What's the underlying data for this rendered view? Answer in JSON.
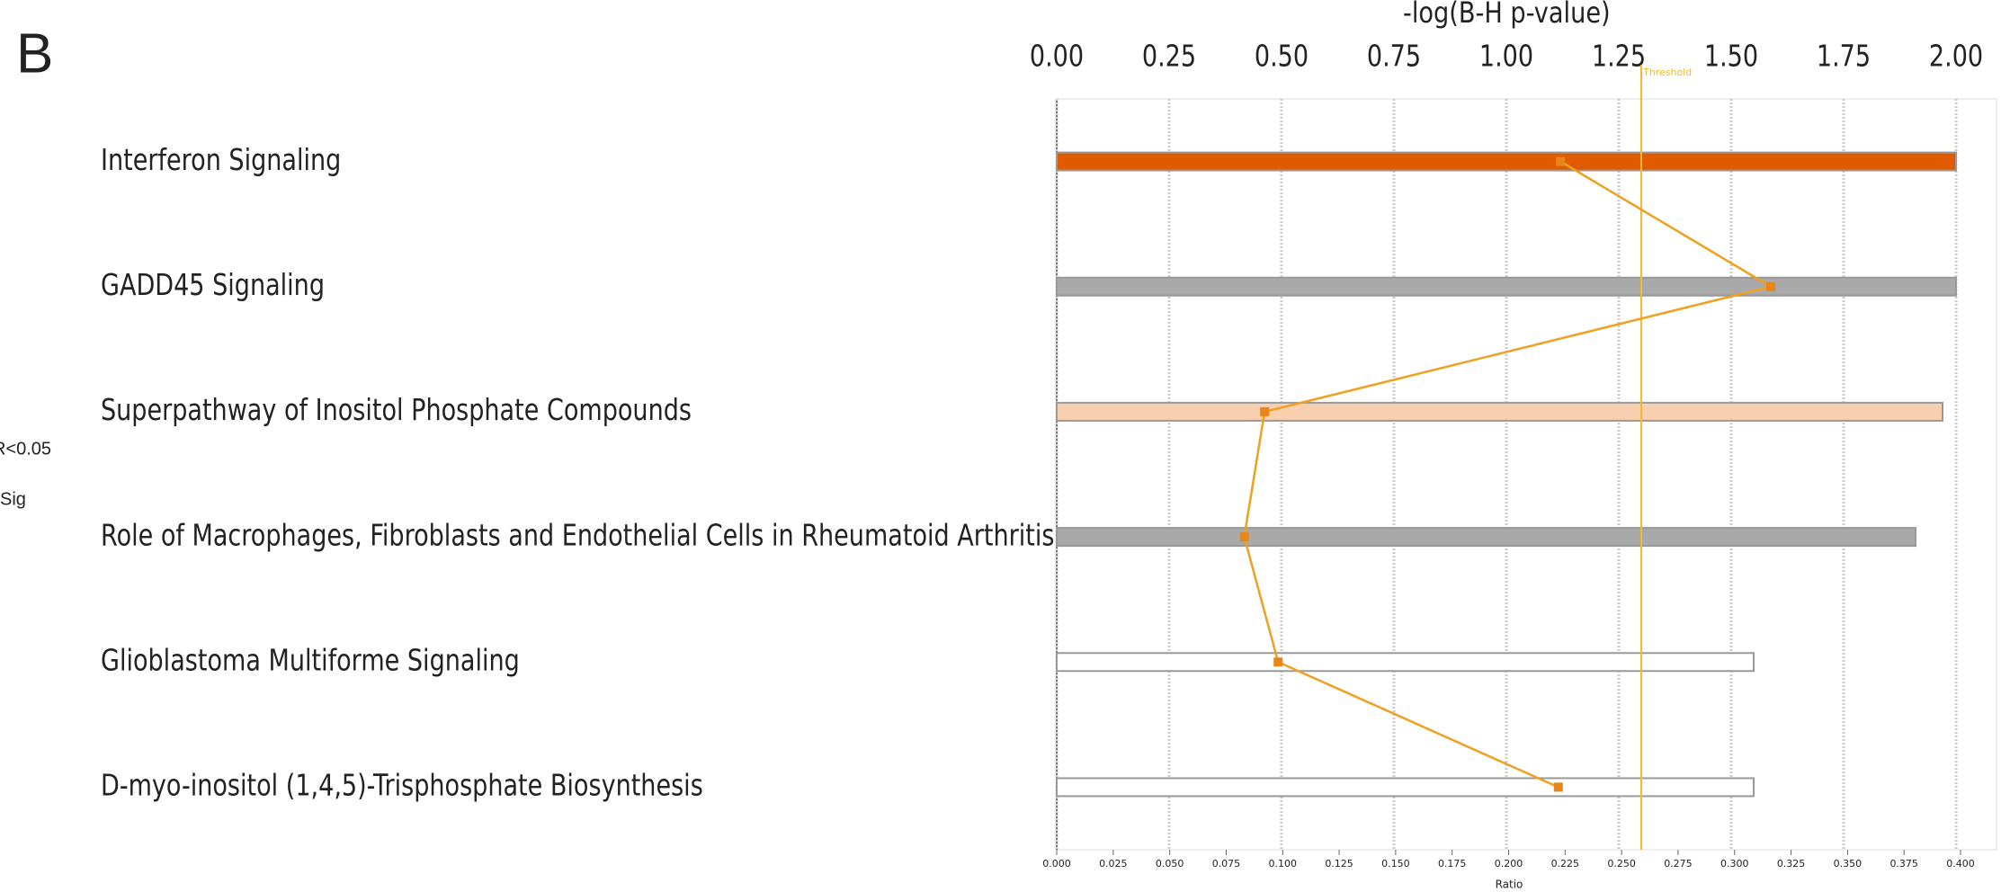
{
  "chart_data": {
    "type": "bar",
    "panel_label": "B",
    "side_labels": [
      "R<0.05",
      "Sig"
    ],
    "xlabel": "-log(B-H p-value)",
    "x2label": "Ratio",
    "categories": [
      "Interferon Signaling",
      "GADD45 Signaling",
      "Superpathway of Inositol Phosphate Compounds",
      "Role of Macrophages, Fibroblasts and Endothelial Cells in Rheumatoid Arthritis",
      "Glioblastoma Multiforme Signaling",
      "D-myo-inositol (1,4,5)-Trisphosphate Biosynthesis"
    ],
    "values": [
      2.0,
      2.0,
      1.97,
      1.91,
      1.55,
      1.55
    ],
    "colors": [
      "#e05a00",
      "#a9a9a9",
      "#f8d0b0",
      "#a9a9a9",
      "#ffffff",
      "#ffffff"
    ],
    "ratio": {
      "values": [
        0.223,
        0.316,
        0.092,
        0.083,
        0.098,
        0.222
      ],
      "color": "#f0a020",
      "axis": "x2"
    },
    "threshold": {
      "value": 1.3,
      "label": "Threshold",
      "color": "#f5b830"
    },
    "xlim": [
      0,
      2
    ],
    "xticks": [
      {
        "value": 0,
        "label": "0.00"
      },
      0.25,
      {
        "value": 0.5,
        "label": "0.50"
      },
      0.75,
      {
        "value": 1,
        "label": "1.00"
      },
      1.25,
      {
        "value": 1.5,
        "label": "1.50"
      },
      1.75,
      {
        "value": 2,
        "label": "2.00"
      }
    ],
    "x2lim": [
      0,
      0.4
    ],
    "x2ticks": [
      {
        "value": 0,
        "label": "0.000"
      },
      0.025,
      {
        "value": 0.05,
        "label": "0.050"
      },
      0.075,
      {
        "value": 0.1,
        "label": "0.100"
      },
      0.125,
      {
        "value": 0.15,
        "label": "0.150"
      },
      0.175,
      {
        "value": 0.2,
        "label": "0.200"
      },
      0.225,
      {
        "value": 0.25,
        "label": "0.250"
      },
      0.275,
      {
        "value": 0.3,
        "label": "0.300"
      },
      0.325,
      {
        "value": 0.35,
        "label": "0.350"
      },
      0.375,
      {
        "value": 0.4,
        "label": "0.400"
      }
    ],
    "grid": true
  }
}
